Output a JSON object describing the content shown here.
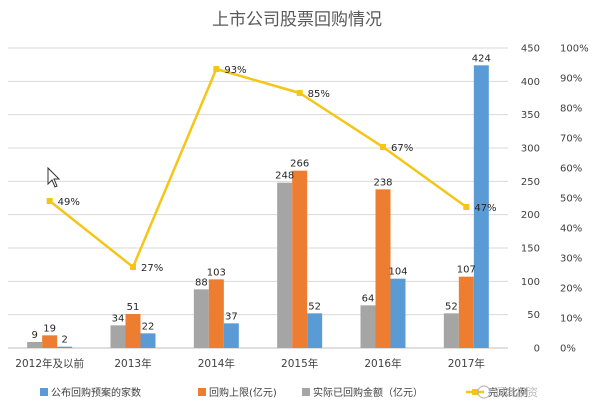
{
  "chart_data": {
    "type": "bar",
    "title": "上市公司股票回购情况",
    "categories": [
      "2012年及以前",
      "2013年",
      "2014年",
      "2015年",
      "2016年",
      "2017年"
    ],
    "series": [
      {
        "name": "实际已回购金额（亿元）",
        "kind": "bar",
        "axis": "left",
        "color": "#a5a5a5",
        "values": [
          9,
          34,
          88,
          248,
          64,
          52
        ]
      },
      {
        "name": "回购上限(亿元)",
        "kind": "bar",
        "axis": "left",
        "color": "#ed7d31",
        "values": [
          19,
          51,
          103,
          266,
          238,
          107
        ]
      },
      {
        "name": "公布回购预案的家数",
        "kind": "bar",
        "axis": "left",
        "color": "#5b9bd5",
        "values": [
          2,
          22,
          37,
          52,
          104,
          424
        ]
      },
      {
        "name": "完成比例",
        "kind": "line",
        "axis": "right",
        "color": "#f5c518",
        "values": [
          0.49,
          0.27,
          0.93,
          0.85,
          0.67,
          0.47
        ]
      }
    ],
    "data_labels": {
      "bars": [
        [
          "9",
          "19",
          "2"
        ],
        [
          "34",
          "51",
          "22"
        ],
        [
          "88",
          "103",
          "37"
        ],
        [
          "248",
          "266",
          "52"
        ],
        [
          "64",
          "238",
          "104"
        ],
        [
          "52",
          "107",
          "424"
        ]
      ],
      "line": [
        "49%",
        "27%",
        "93%",
        "85%",
        "67%",
        "47%"
      ]
    },
    "y_left": {
      "min": 0,
      "max": 450,
      "step": 50,
      "ticks": [
        "0",
        "50",
        "100",
        "150",
        "200",
        "250",
        "300",
        "350",
        "400",
        "450"
      ]
    },
    "y_right": {
      "min": 0,
      "max": 1,
      "step": 0.1,
      "ticks": [
        "0%",
        "10%",
        "20%",
        "30%",
        "40%",
        "50%",
        "60%",
        "70%",
        "80%",
        "90%",
        "100%"
      ]
    },
    "grid": true,
    "legend_position": "bottom",
    "legend_order": [
      "公布回购预案的家数",
      "回购上限(亿元)",
      "实际已回购金额（亿元）",
      "完成比例"
    ]
  },
  "watermark": "润商投资"
}
